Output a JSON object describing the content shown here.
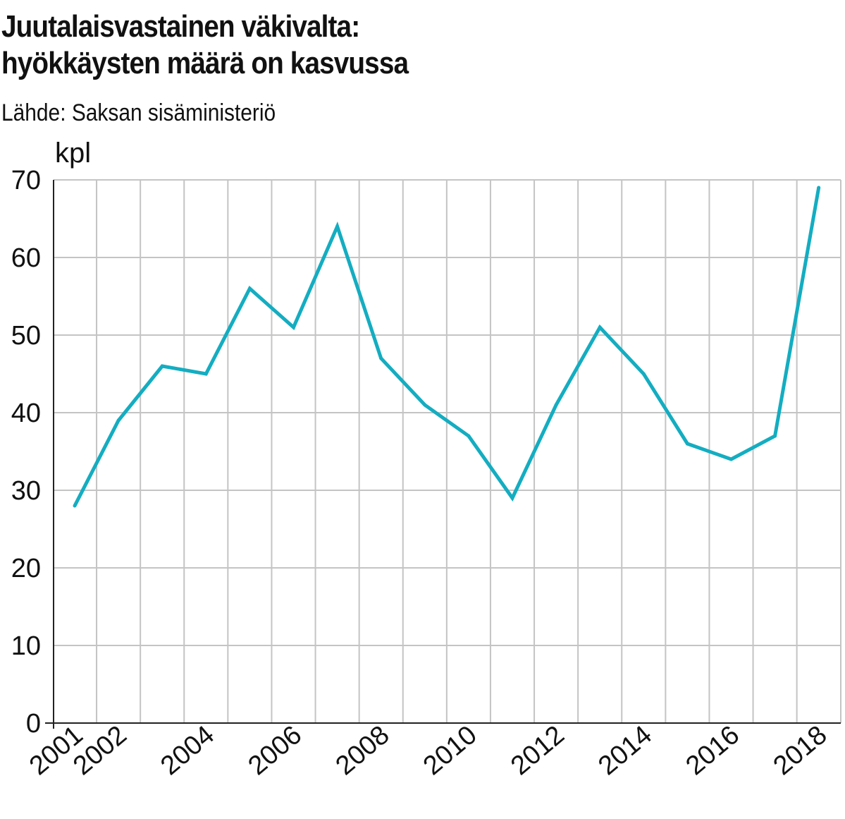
{
  "title_lines": [
    "Juutalaisvastainen väkivalta:",
    "hyökkäysten määrä on kasvussa"
  ],
  "source": "Lähde: Saksan sisäministeriö",
  "chart_data": {
    "type": "line",
    "title": "Juutalaisvastainen väkivalta: hyökkäysten määrä on kasvussa",
    "ylabel": "kpl",
    "xlabel": "",
    "ylim": [
      0,
      70
    ],
    "xlim": [
      2001,
      2018
    ],
    "y_ticks": [
      0,
      10,
      20,
      30,
      40,
      50,
      60,
      70
    ],
    "x_tick_labels": [
      "2001",
      "2002",
      "2004",
      "2006",
      "2008",
      "2010",
      "2012",
      "2014",
      "2016",
      "2018"
    ],
    "grid": true,
    "line_color": "#14adc1",
    "series": [
      {
        "x": [
          2001,
          2002,
          2003,
          2004,
          2005,
          2006,
          2007,
          2008,
          2009,
          2010,
          2011,
          2012,
          2013,
          2014,
          2015,
          2016,
          2017,
          2018
        ],
        "values": [
          28,
          39,
          46,
          45,
          56,
          51,
          64,
          47,
          41,
          37,
          29,
          41,
          51,
          45,
          36,
          34,
          37,
          69
        ]
      }
    ]
  }
}
